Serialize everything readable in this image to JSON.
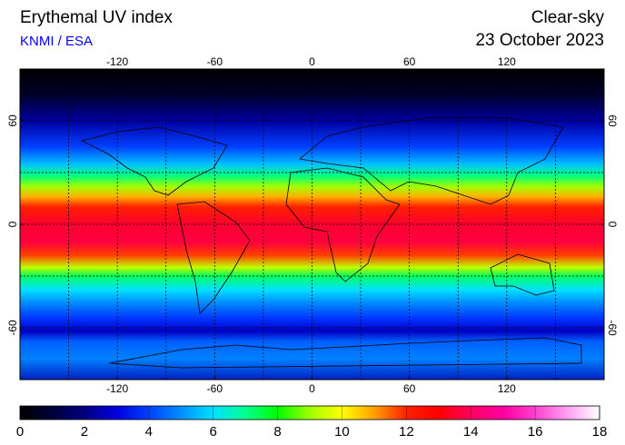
{
  "header": {
    "title": "Erythemal UV index",
    "source": "KNMI / ESA",
    "condition": "Clear-sky",
    "date": "23 October 2023"
  },
  "map": {
    "lonlim": [
      -180,
      180
    ],
    "latlim": [
      -90,
      90
    ],
    "lon_ticks": [
      -120,
      -60,
      0,
      60,
      120
    ],
    "lat_ticks": [
      60,
      0,
      -60
    ],
    "grid": {
      "lon": [
        -150,
        -120,
        -90,
        -60,
        -30,
        0,
        30,
        60,
        90,
        120,
        150
      ],
      "lat": [
        -60,
        -30,
        0,
        30,
        60
      ]
    }
  },
  "colorbar": {
    "range": [
      0,
      18
    ],
    "ticks": [
      0,
      2,
      4,
      6,
      8,
      10,
      12,
      14,
      16,
      18
    ],
    "colormap": [
      "#000000",
      "#00003a",
      "#000080",
      "#0000e0",
      "#0040ff",
      "#0090ff",
      "#00e0ff",
      "#00ff90",
      "#00ff00",
      "#a0ff00",
      "#ffff00",
      "#ffa000",
      "#ff2000",
      "#ff0000",
      "#ff0060",
      "#ff00a0",
      "#ff40d0",
      "#ffa0f0",
      "#ffffff"
    ]
  }
}
